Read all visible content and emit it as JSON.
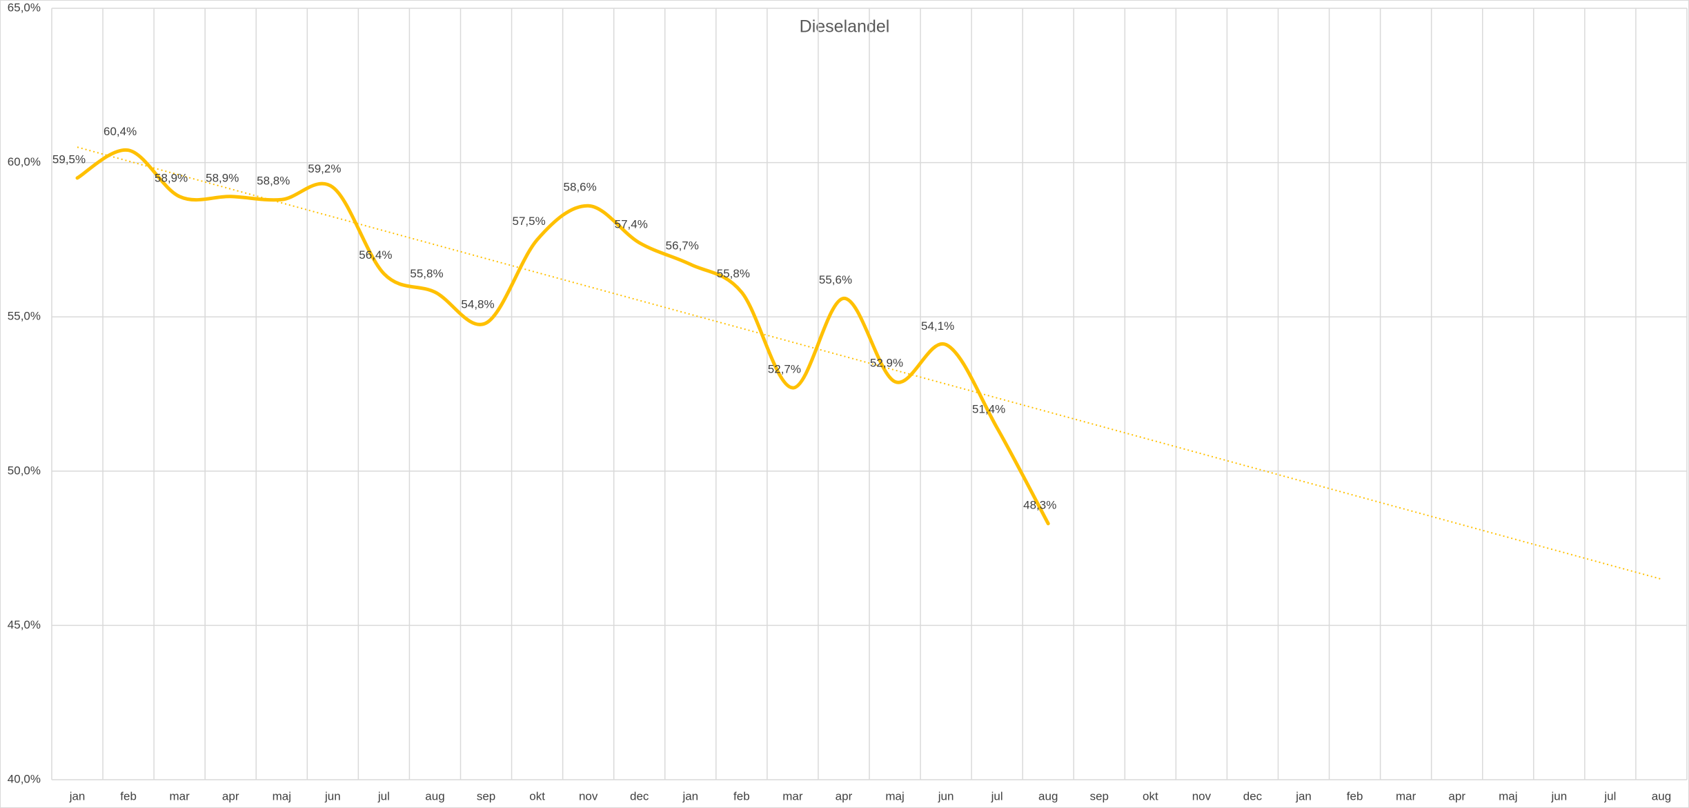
{
  "chart_data": {
    "type": "line",
    "title": "Dieselandel",
    "categories": [
      "jan",
      "feb",
      "mar",
      "apr",
      "maj",
      "jun",
      "jul",
      "aug",
      "sep",
      "okt",
      "nov",
      "dec",
      "jan",
      "feb",
      "mar",
      "apr",
      "maj",
      "jun",
      "jul",
      "aug",
      "sep",
      "okt",
      "nov",
      "dec",
      "jan",
      "feb",
      "mar",
      "apr",
      "maj",
      "jun",
      "jul",
      "aug"
    ],
    "series": [
      {
        "color": "#ffc000",
        "values": [
          59.5,
          60.4,
          58.9,
          58.9,
          58.8,
          59.2,
          56.4,
          55.8,
          54.8,
          57.5,
          58.6,
          57.4,
          56.7,
          55.8,
          52.7,
          55.6,
          52.9,
          54.1,
          51.4,
          48.3,
          null,
          null,
          null,
          null,
          null,
          null,
          null,
          null,
          null,
          null,
          null,
          null
        ],
        "value_labels": [
          "59,5%",
          "60,4%",
          "58,9%",
          "58,9%",
          "58,8%",
          "59,2%",
          "56,4%",
          "55,8%",
          "54,8%",
          "57,5%",
          "58,6%",
          "57,4%",
          "56,7%",
          "55,8%",
          "52,7%",
          "55,6%",
          "52,9%",
          "54,1%",
          "51,4%",
          "48,3%",
          null,
          null,
          null,
          null,
          null,
          null,
          null,
          null,
          null,
          null,
          null,
          null
        ]
      }
    ],
    "trendline": {
      "color": "#ffc000",
      "style": "dotted",
      "start": 60.5,
      "end": 46.5
    },
    "ylim": [
      40,
      65
    ],
    "yticks": [
      {
        "value": 40,
        "label": "40,0%"
      },
      {
        "value": 45,
        "label": "45,0%"
      },
      {
        "value": 50,
        "label": "50,0%"
      },
      {
        "value": 55,
        "label": "55,0%"
      },
      {
        "value": 60,
        "label": "60,0%"
      },
      {
        "value": 65,
        "label": "65,0%"
      }
    ],
    "grid": true,
    "smooth": true
  }
}
